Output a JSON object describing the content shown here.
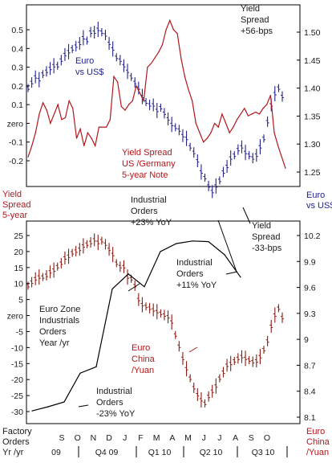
{
  "chart_data": [
    {
      "type": "line",
      "panel": "top",
      "grid": false,
      "left_axis": {
        "label": [
          "Yield",
          "Spread",
          "5-year"
        ],
        "ticks": [
          "0.5",
          "0.4",
          "0.3",
          "0.2",
          "0.1",
          "zero",
          "-0.1",
          "-0.2"
        ],
        "ylim": [
          -0.26,
          0.56
        ]
      },
      "right_axis": {
        "label": [
          "Euro",
          "vs US$"
        ],
        "ticks": [
          "1.50",
          "1.45",
          "1.40",
          "1.35",
          "1.30",
          "1.25"
        ],
        "ylim": [
          1.195,
          1.525
        ]
      },
      "series": [
        {
          "name": "Euro vs US$",
          "type": "ohlc",
          "axis": "right",
          "color": "#23238c",
          "values": [
            1.4,
            1.41,
            1.42,
            1.415,
            1.425,
            1.43,
            1.435,
            1.44,
            1.44,
            1.45,
            1.46,
            1.465,
            1.47,
            1.475,
            1.48,
            1.49,
            1.485,
            1.5,
            1.5,
            1.505,
            1.5,
            1.495,
            1.48,
            1.47,
            1.455,
            1.45,
            1.44,
            1.43,
            1.42,
            1.41,
            1.4,
            1.385,
            1.375,
            1.37,
            1.37,
            1.36,
            1.365,
            1.355,
            1.345,
            1.335,
            1.33,
            1.325,
            1.315,
            1.31,
            1.295,
            1.285,
            1.27,
            1.25,
            1.24,
            1.225,
            1.215,
            1.225,
            1.235,
            1.25,
            1.26,
            1.275,
            1.28,
            1.29,
            1.295,
            1.285,
            1.28,
            1.275,
            1.28,
            1.295,
            1.31,
            1.34,
            1.37,
            1.39,
            1.4,
            1.385
          ]
        },
        {
          "name": "Yield Spread US /Germany 5-year Note",
          "type": "line",
          "axis": "left",
          "color": "#b3161b",
          "values": [
            -0.18,
            -0.12,
            -0.05,
            0.05,
            0.11,
            0.07,
            0.0,
            0.05,
            0.1,
            0.02,
            0.03,
            0.12,
            0.08,
            -0.08,
            -0.03,
            -0.12,
            -0.05,
            -0.08,
            -0.12,
            -0.02,
            -0.02,
            -0.02,
            0.02,
            0.25,
            0.22,
            0.09,
            0.07,
            0.1,
            0.12,
            0.2,
            0.16,
            0.12,
            0.3,
            0.32,
            0.35,
            0.38,
            0.42,
            0.5,
            0.55,
            0.5,
            0.48,
            0.35,
            0.25,
            0.18,
            0.12,
            0.0,
            -0.05,
            -0.1,
            -0.08,
            -0.05,
            0.0,
            -0.02,
            0.05,
            0.0,
            -0.05,
            -0.02,
            0.02,
            0.05,
            0.08,
            0.04,
            0.05,
            0.06,
            0.05,
            0.08,
            0.1,
            0.15,
            -0.05,
            -0.12,
            -0.18,
            -0.24
          ]
        }
      ],
      "annotations": [
        [
          "Yield",
          "Spread",
          "+56-bps"
        ],
        [
          "Euro",
          "vs US$"
        ],
        [
          "Yield Spread",
          "US /Germany",
          "5-year Note"
        ],
        [
          "Yield",
          "Spread",
          "-33-bps"
        ],
        [
          "Industrial",
          "Orders",
          "+23% YoY"
        ]
      ]
    },
    {
      "type": "line",
      "panel": "bottom",
      "grid": false,
      "left_axis": {
        "label": [
          "Factory",
          "Orders",
          "Yr /yr"
        ],
        "ticks": [
          "25",
          "20",
          "15",
          "10",
          "5",
          "zero",
          "-5",
          "-10",
          "-15",
          "-20",
          "-25",
          "-30"
        ],
        "ylim": [
          -31,
          27
        ]
      },
      "right_axis": {
        "label": [
          "Euro",
          "China",
          "/Yuan"
        ],
        "ticks": [
          "10.2",
          "9.9",
          "9.6",
          "9.3",
          "9",
          "8.7",
          "8.4",
          "8.1"
        ],
        "ylim": [
          8.05,
          10.3
        ]
      },
      "x_axis": {
        "months": [
          "S",
          "O",
          "N",
          "D",
          "J",
          "F",
          "M",
          "A",
          "M",
          "J",
          "J",
          "A",
          "S",
          "O"
        ],
        "groups": [
          "09",
          "Q4 09",
          "Q1 10",
          "Q2 10",
          "Q3 10"
        ]
      },
      "series": [
        {
          "name": "Euro China /Yuan",
          "type": "ohlc",
          "axis": "right",
          "color": "#8c1c14",
          "values": [
            9.62,
            9.66,
            9.7,
            9.72,
            9.72,
            9.74,
            9.78,
            9.8,
            9.84,
            9.88,
            9.94,
            9.96,
            10.0,
            10.02,
            10.04,
            10.08,
            10.1,
            10.12,
            10.15,
            10.12,
            10.14,
            10.1,
            10.04,
            9.98,
            9.88,
            9.84,
            9.84,
            9.72,
            9.7,
            9.62,
            9.46,
            9.4,
            9.38,
            9.36,
            9.34,
            9.32,
            9.3,
            9.28,
            9.26,
            9.2,
            9.05,
            8.92,
            8.78,
            8.66,
            8.55,
            8.44,
            8.36,
            8.3,
            8.26,
            8.34,
            8.4,
            8.46,
            8.55,
            8.62,
            8.7,
            8.72,
            8.75,
            8.78,
            8.8,
            8.78,
            8.76,
            8.74,
            8.75,
            8.8,
            8.88,
            8.98,
            9.15,
            9.28,
            9.36,
            9.25
          ]
        },
        {
          "name": "Euro Zone Industrials Orders Year /yr",
          "type": "line",
          "axis": "left",
          "color": "#000000",
          "values": [
            -29.8,
            -28.5,
            -27.0,
            -18.0,
            -16.0,
            8.3,
            13.0,
            9.0,
            20.0,
            22.5,
            23.3,
            23.1,
            19.0,
            12.0
          ]
        }
      ],
      "annotations": [
        [
          "Euro Zone",
          "Industrials",
          "Orders",
          "Year /yr"
        ],
        [
          "Industrial",
          "Orders",
          "+11% YoY"
        ],
        [
          "Euro",
          "China",
          "/Yuan"
        ],
        [
          "Industrial",
          "Orders",
          "-23% YoY"
        ]
      ]
    }
  ]
}
